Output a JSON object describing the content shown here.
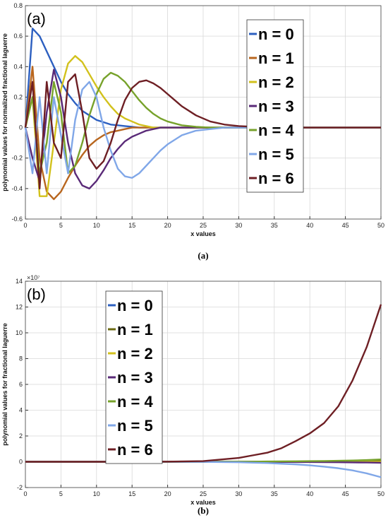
{
  "chart_data": [
    {
      "type": "line",
      "panel_label": "(a)",
      "caption": "(a)",
      "x_label": "x values",
      "y_label": "polynomial values for normalized fractional laguerre",
      "xlim": [
        0,
        50
      ],
      "xticks": [
        0,
        5,
        10,
        15,
        20,
        25,
        30,
        35,
        40,
        45,
        50
      ],
      "ylim": [
        -0.6,
        0.8
      ],
      "yticks": [
        -0.6,
        -0.4,
        -0.2,
        0,
        0.2,
        0.4,
        0.6,
        0.8
      ],
      "grid": true,
      "legend": "center right",
      "x": [
        0,
        1,
        2,
        3,
        4,
        5,
        6,
        7,
        8,
        9,
        10,
        11,
        12,
        13,
        14,
        15,
        16,
        17,
        18,
        19,
        20,
        22,
        24,
        26,
        28,
        30,
        35,
        40,
        50
      ],
      "series": [
        {
          "name": "n = 0",
          "color": "#2c5fc0",
          "values": [
            0,
            0.65,
            0.6,
            0.5,
            0.4,
            0.3,
            0.22,
            0.16,
            0.11,
            0.08,
            0.05,
            0.035,
            0.02,
            0.015,
            0.01,
            0.005,
            0,
            0,
            0,
            0,
            0,
            0,
            0,
            0,
            0,
            0,
            0,
            0,
            0
          ]
        },
        {
          "name": "n = 1",
          "color": "#b8661e",
          "values": [
            0,
            0.4,
            -0.2,
            -0.42,
            -0.47,
            -0.42,
            -0.33,
            -0.25,
            -0.18,
            -0.12,
            -0.08,
            -0.05,
            -0.03,
            -0.02,
            -0.01,
            0,
            0,
            0,
            0,
            0,
            0,
            0,
            0,
            0,
            0,
            0,
            0,
            0,
            0
          ]
        },
        {
          "name": "n = 2",
          "color": "#d2c11c",
          "values": [
            0,
            0.2,
            -0.45,
            -0.45,
            -0.1,
            0.25,
            0.42,
            0.47,
            0.43,
            0.35,
            0.27,
            0.2,
            0.14,
            0.09,
            0.06,
            0.04,
            0.02,
            0.01,
            0,
            0,
            0,
            0,
            0,
            0,
            0,
            0,
            0,
            0,
            0
          ]
        },
        {
          "name": "n = 3",
          "color": "#5a2a78",
          "values": [
            0,
            -0.2,
            -0.35,
            0.1,
            0.38,
            0.2,
            -0.1,
            -0.3,
            -0.38,
            -0.4,
            -0.35,
            -0.28,
            -0.2,
            -0.14,
            -0.09,
            -0.06,
            -0.04,
            -0.02,
            -0.01,
            0,
            0,
            0,
            0,
            0,
            0,
            0,
            0,
            0,
            0
          ]
        },
        {
          "name": "n = 4",
          "color": "#77a22b",
          "values": [
            0,
            0.2,
            -0.3,
            -0.1,
            0.3,
            0.1,
            -0.3,
            -0.25,
            -0.1,
            0.08,
            0.22,
            0.32,
            0.36,
            0.34,
            0.3,
            0.24,
            0.18,
            0.13,
            0.09,
            0.06,
            0.04,
            0.015,
            0.005,
            0,
            0,
            0,
            0,
            0,
            0
          ]
        },
        {
          "name": "n = 5",
          "color": "#80a7e8",
          "values": [
            0,
            -0.3,
            0.2,
            -0.3,
            0.2,
            -0.05,
            -0.3,
            0.05,
            0.25,
            0.3,
            0.2,
            0,
            -0.15,
            -0.27,
            -0.32,
            -0.33,
            -0.3,
            -0.25,
            -0.2,
            -0.15,
            -0.11,
            -0.05,
            -0.02,
            -0.01,
            0,
            0,
            0,
            0,
            0
          ]
        },
        {
          "name": "n = 6",
          "color": "#6e1f24",
          "values": [
            0,
            0.3,
            -0.4,
            0.3,
            -0.1,
            -0.2,
            0.3,
            0.35,
            0.1,
            -0.2,
            -0.27,
            -0.22,
            -0.1,
            0.05,
            0.18,
            0.26,
            0.3,
            0.31,
            0.29,
            0.26,
            0.22,
            0.14,
            0.08,
            0.04,
            0.02,
            0.01,
            0,
            0,
            0
          ]
        }
      ]
    },
    {
      "type": "line",
      "panel_label": "(b)",
      "caption": "(b)",
      "x_label": "x values",
      "y_label": "polynomial values for fractional laguerre",
      "y_offset_text": "×10⁷",
      "xlim": [
        0,
        50
      ],
      "xticks": [
        0,
        5,
        10,
        15,
        20,
        25,
        30,
        35,
        40,
        45,
        50
      ],
      "ylim": [
        -2,
        14
      ],
      "yticks": [
        -2,
        0,
        2,
        4,
        6,
        8,
        10,
        12,
        14
      ],
      "grid": true,
      "legend": "upper left",
      "x": [
        0,
        5,
        10,
        15,
        20,
        25,
        30,
        32,
        34,
        36,
        38,
        40,
        42,
        44,
        46,
        48,
        50
      ],
      "series": [
        {
          "name": "n = 0",
          "color": "#2c5fc0",
          "values": [
            0,
            0,
            0,
            0,
            0,
            0,
            0,
            0,
            0,
            0,
            0,
            0,
            0,
            0,
            0,
            0,
            0
          ]
        },
        {
          "name": "n = 1",
          "color": "#6b6a12",
          "values": [
            0,
            0,
            0,
            0,
            0,
            0,
            0,
            0,
            0,
            0.01,
            0.01,
            0.02,
            0.02,
            0.03,
            0.04,
            0.05,
            0.06
          ]
        },
        {
          "name": "n = 2",
          "color": "#d2c11c",
          "values": [
            0,
            0,
            0,
            0,
            0,
            0,
            0,
            0,
            0,
            0,
            0,
            0,
            0,
            0,
            0,
            0,
            0
          ]
        },
        {
          "name": "n = 3",
          "color": "#5a2a78",
          "values": [
            0,
            0,
            0,
            0,
            0,
            0,
            0,
            0,
            -0.01,
            -0.01,
            -0.02,
            -0.02,
            -0.03,
            -0.04,
            -0.05,
            -0.06,
            -0.08
          ]
        },
        {
          "name": "n = 4",
          "color": "#77a22b",
          "values": [
            0,
            0,
            0,
            0,
            0,
            0,
            0.01,
            0.01,
            0.02,
            0.03,
            0.04,
            0.05,
            0.06,
            0.08,
            0.1,
            0.13,
            0.18
          ]
        },
        {
          "name": "n = 5",
          "color": "#80a7e8",
          "values": [
            0,
            0,
            0,
            0,
            0,
            -0.01,
            -0.04,
            -0.07,
            -0.1,
            -0.15,
            -0.2,
            -0.28,
            -0.38,
            -0.5,
            -0.67,
            -0.9,
            -1.2
          ]
        },
        {
          "name": "n = 6",
          "color": "#6e1f24",
          "values": [
            0,
            0,
            0,
            0,
            0.01,
            0.05,
            0.3,
            0.5,
            0.7,
            1.05,
            1.6,
            2.2,
            3.0,
            4.3,
            6.3,
            8.9,
            12.2
          ]
        }
      ]
    }
  ]
}
